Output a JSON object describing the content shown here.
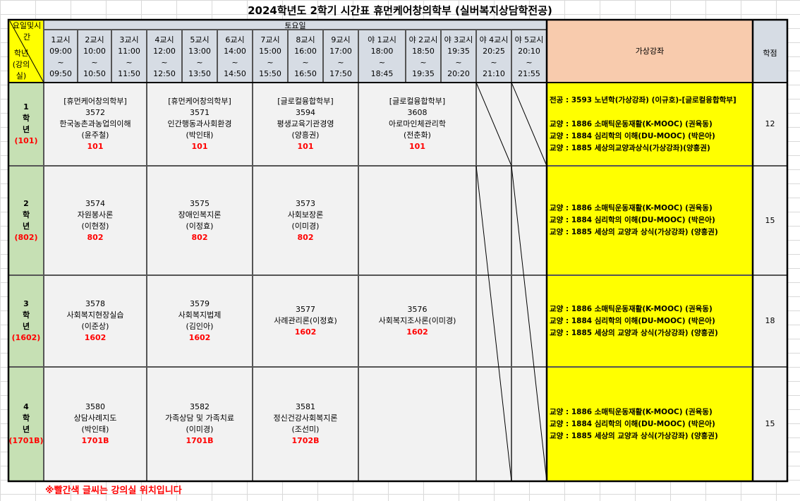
{
  "title": "2024학년도 2학기 시간표 휴먼케어창의학부 (실버복지상담학전공)",
  "corner": {
    "top": "요일및시간",
    "bottom": "학년(강의실)"
  },
  "day": "토요일",
  "periods": [
    {
      "label": "1교시",
      "start": "09:00",
      "end": "09:50"
    },
    {
      "label": "2교시",
      "start": "10:00",
      "end": "10:50"
    },
    {
      "label": "3교시",
      "start": "11:00",
      "end": "11:50"
    },
    {
      "label": "4교시",
      "start": "12:00",
      "end": "12:50"
    },
    {
      "label": "5교시",
      "start": "13:00",
      "end": "13:50"
    },
    {
      "label": "6교시",
      "start": "14:00",
      "end": "14:50"
    },
    {
      "label": "7교시",
      "start": "15:00",
      "end": "15:50"
    },
    {
      "label": "8교시",
      "start": "16:00",
      "end": "16:50"
    },
    {
      "label": "9교시",
      "start": "17:00",
      "end": "17:50"
    },
    {
      "label": "야 1교시",
      "start": "18:00",
      "end": "18:45"
    },
    {
      "label": "야 2교시",
      "start": "18:50",
      "end": "19:35"
    },
    {
      "label": "야 3교시",
      "start": "19:35",
      "end": "20:20"
    },
    {
      "label": "야 4교시",
      "start": "20:25",
      "end": "21:10"
    },
    {
      "label": "야 5교시",
      "start": "20:10",
      "end": "21:55"
    }
  ],
  "tilde": "~",
  "virtual_header": "가상강좌",
  "credits_header": "학점",
  "grades": [
    {
      "num": "1",
      "hak": "학",
      "nyeon": "년",
      "room": "(101)",
      "credits": "12",
      "courses": [
        {
          "dept": "[휴먼케어창의학부]",
          "code": "3572",
          "name": "한국농촌과농업의이해",
          "prof": "(윤주철)",
          "room": "101"
        },
        {
          "dept": "[휴먼케어창의학부]",
          "code": "3571",
          "name": "인간행동과사회환경",
          "prof": "(박인태)",
          "room": "101"
        },
        {
          "dept": "[글로컬융합학부]",
          "code": "3594",
          "name": "평생교육기관경영",
          "prof": "(양흥권)",
          "room": "101"
        },
        {
          "dept": "[글로컬융합학부]",
          "code": "3608",
          "name": "아로마인체관리학",
          "prof": "(전춘화)",
          "room": "101"
        }
      ],
      "virtual": [
        "전공 : 3593 노년학(가상강좌) (이규호)-[글로컬융합학부]",
        "",
        "교양 : 1886 소매틱운동재활(K-MOOC) (권육동)",
        "교양 : 1884 심리학의 이해(DU-MOOC) (박은아)",
        "교양 : 1885 세상의교양과상식(가상강좌)(양흥권)"
      ]
    },
    {
      "num": "2",
      "hak": "학",
      "nyeon": "년",
      "room": "(802)",
      "credits": "15",
      "courses": [
        {
          "code": "3574",
          "name": "자원봉사론",
          "prof": "(이현정)",
          "room": "802"
        },
        {
          "code": "3575",
          "name": "장애인복지론",
          "prof": "(이정효)",
          "room": "802"
        },
        {
          "code": "3573",
          "name": "사회보장론",
          "prof": "(이미경)",
          "room": "802"
        }
      ],
      "virtual": [
        "교양 : 1886 소매틱운동재활(K-MOOC) (권육동)",
        "교양 : 1884 심리학의 이해(DU-MOOC) (박은아)",
        "교양 : 1885 세상의 교양과 상식(가상강좌) (양흥권)"
      ]
    },
    {
      "num": "3",
      "hak": "학",
      "nyeon": "년",
      "room": "(1602)",
      "credits": "18",
      "courses": [
        {
          "code": "3578",
          "name": "사회복지현장실습",
          "prof": "(이준상)",
          "room": "1602"
        },
        {
          "code": "3579",
          "name": "사회복지법제",
          "prof": "(김인아)",
          "room": "1602"
        },
        {
          "code": "3577",
          "name": "사례관리론(이정효)",
          "prof": "",
          "room": "1602"
        },
        {
          "code": "3576",
          "name": "사회복지조사론(이미경)",
          "prof": "",
          "room": "1602"
        }
      ],
      "virtual": [
        "교양 : 1886 소매틱운동재활(K-MOOC) (권육동)",
        "교양 : 1884 심리학의 이해(DU-MOOC) (박은아)",
        "교양 : 1885 세상의 교양과 상식(가상강좌) (양흥권)"
      ]
    },
    {
      "num": "4",
      "hak": "학",
      "nyeon": "년",
      "room": "(1701B)",
      "credits": "15",
      "courses": [
        {
          "code": "3580",
          "name": "상담사례지도",
          "prof": "(박인태)",
          "room": "1701B"
        },
        {
          "code": "3582",
          "name": "가족상담 및 가족치료",
          "prof": "(이미경)",
          "room": "1701B"
        },
        {
          "code": "3581",
          "name": "정신건강사회복지론",
          "prof": "(조선미)",
          "room": "1702B"
        }
      ],
      "virtual": [
        "교양 : 1886 소매틱운동재활(K-MOOC) (권육동)",
        "교양 : 1884 심리학의 이해(DU-MOOC) (박은아)",
        "교양 : 1885 세상의 교양과 상식(가상강좌) (양흥권)"
      ]
    }
  ],
  "note": "※빨간색 글씨는 강의실 위치입니다",
  "colors": {
    "header": "#d6dce4",
    "corner": "#ffff00",
    "grade": "#c6e0b4",
    "virtual": "#ffff00",
    "virtual_header": "#f8cbad",
    "room": "#ff0000"
  }
}
